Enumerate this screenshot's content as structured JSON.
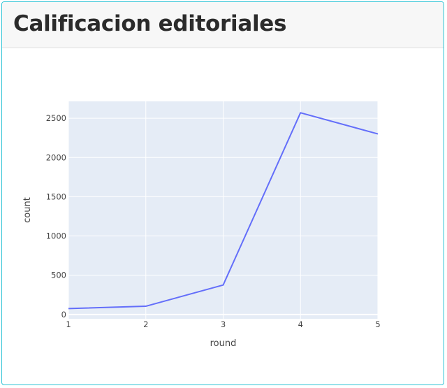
{
  "card": {
    "title": "Calificacion editoriales"
  },
  "chart_data": {
    "type": "line",
    "x": [
      1,
      2,
      3,
      4,
      5
    ],
    "series": [
      {
        "values": [
          75,
          105,
          375,
          2570,
          2300
        ],
        "color": "#636efa"
      }
    ],
    "xlabel": "round",
    "ylabel": "count",
    "xlim": [
      1,
      5
    ],
    "ylim": [
      -55,
      2715
    ],
    "xticks": [
      "1",
      "2",
      "3",
      "4",
      "5"
    ],
    "yticks": [
      0,
      500,
      1000,
      1500,
      2000,
      2500
    ],
    "ytick_labels": [
      "0",
      "500",
      "1000",
      "1500",
      "2000",
      "2500"
    ],
    "grid": true,
    "plot_background": "#e5ecf6"
  }
}
